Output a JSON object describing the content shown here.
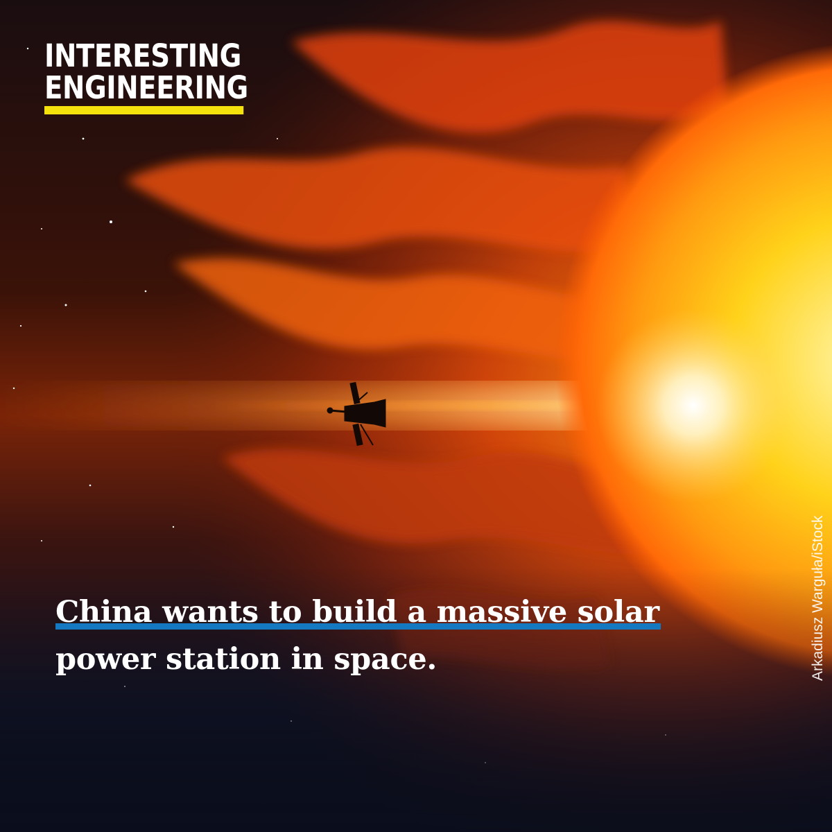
{
  "brand": {
    "line1": "INTERESTING",
    "line2": "ENGINEERING",
    "accent_color": "#f5e10c"
  },
  "headline": {
    "line1": "China wants to build a massive solar",
    "line2": "power station in space.",
    "highlight_color": "#1579c2"
  },
  "credit": "Arkadiusz Warguła/iStock"
}
